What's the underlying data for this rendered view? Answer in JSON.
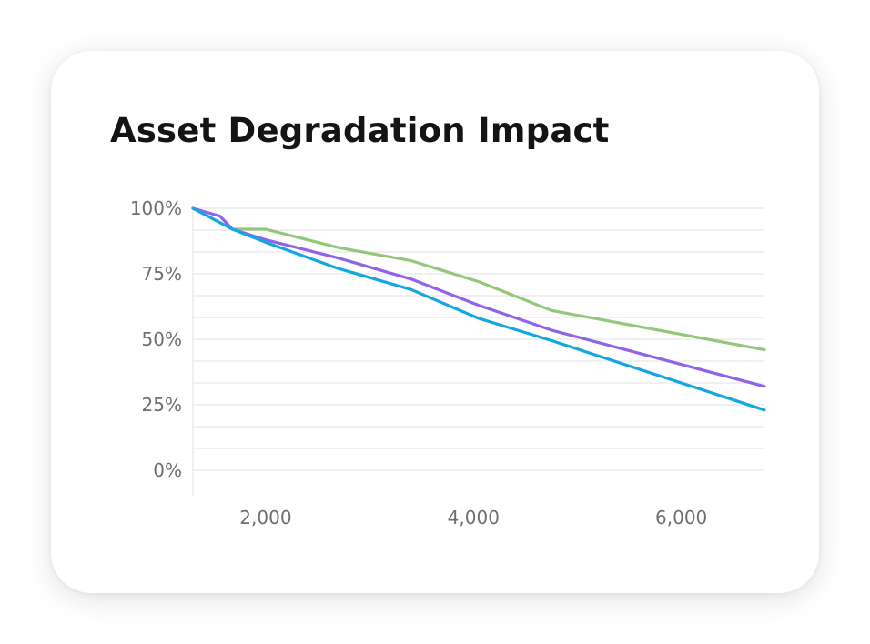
{
  "card": {
    "title": "Asset Degradation Impact"
  },
  "colors": {
    "green": "#93c87a",
    "purple": "#9163e9",
    "blue": "#14a6e1",
    "grid": "#e7e7e7",
    "tick": "#6f6f6f"
  },
  "chart_data": {
    "type": "line",
    "title": "Asset Degradation Impact",
    "xlabel": "",
    "ylabel": "",
    "xlim": [
      1300,
      6800
    ],
    "ylim": [
      0,
      100
    ],
    "x_ticks": [
      2000,
      4000,
      6000
    ],
    "x_tick_labels": [
      "2,000",
      "4,000",
      "6,000"
    ],
    "y_ticks": [
      0,
      25,
      50,
      75,
      100
    ],
    "y_tick_labels": [
      "0%",
      "25%",
      "50%",
      "75%",
      "100%"
    ],
    "y_gridlines": [
      0,
      8.33,
      16.67,
      25,
      33.33,
      41.67,
      50,
      58.33,
      66.67,
      75,
      83.33,
      91.67,
      100
    ],
    "grid": true,
    "legend": "none",
    "series": [
      {
        "color": "#93c87a",
        "x": [
          1300,
          1680,
          2000,
          2700,
          3400,
          4050,
          4750,
          6800
        ],
        "y": [
          100,
          92,
          92,
          85,
          80,
          72,
          61,
          46
        ]
      },
      {
        "color": "#9163e9",
        "x": [
          1300,
          1560,
          1680,
          2000,
          2700,
          3400,
          4050,
          4750,
          6800
        ],
        "y": [
          100,
          97,
          92,
          88,
          81,
          73,
          63,
          53.5,
          32
        ]
      },
      {
        "color": "#14a6e1",
        "x": [
          1300,
          1680,
          2000,
          2700,
          3400,
          4050,
          4750,
          6800
        ],
        "y": [
          100,
          92,
          87,
          77,
          69,
          58,
          49.5,
          23
        ]
      }
    ]
  }
}
